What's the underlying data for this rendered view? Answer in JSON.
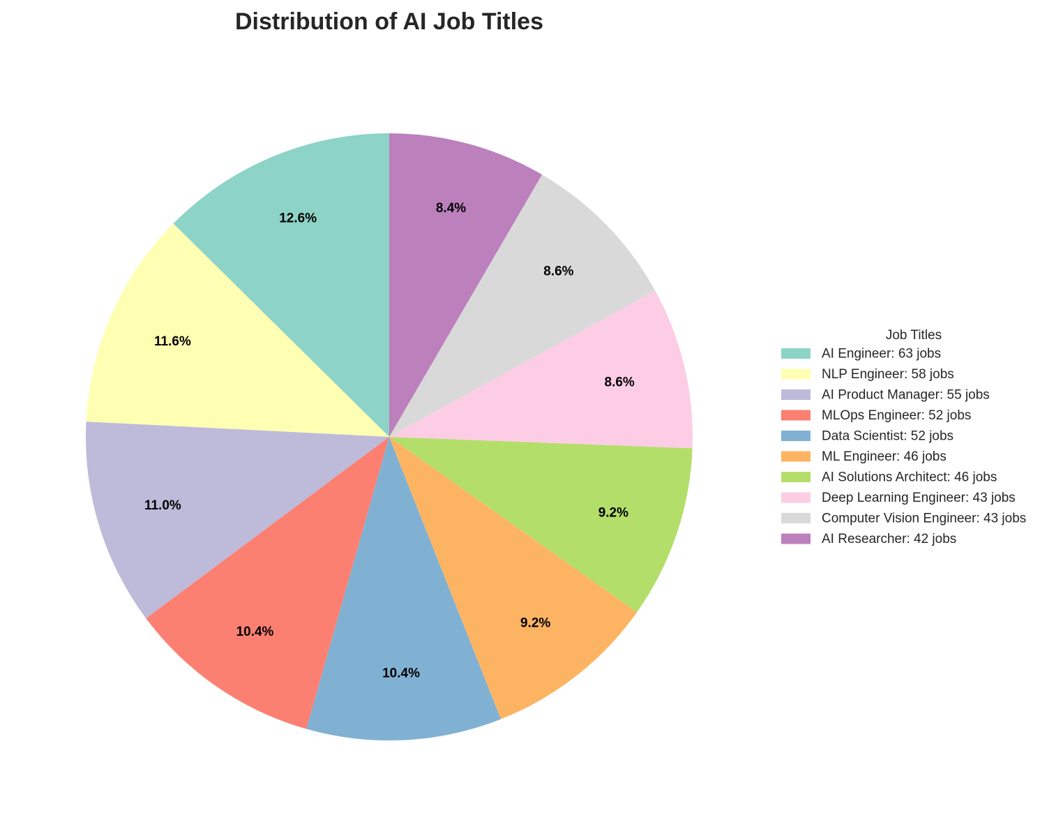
{
  "chart_data": {
    "type": "pie",
    "title": "Distribution of AI Job Titles",
    "legend_title": "Job Titles",
    "legend_position": "right",
    "start_angle_deg": 90,
    "direction": "counterclockwise",
    "slices": [
      {
        "label": "AI Engineer",
        "value": 63,
        "percent": "12.6%",
        "legend": "AI Engineer: 63 jobs",
        "color": "#8dd3c7"
      },
      {
        "label": "NLP Engineer",
        "value": 58,
        "percent": "11.6%",
        "legend": "NLP Engineer: 58 jobs",
        "color": "#ffffb3"
      },
      {
        "label": "AI Product Manager",
        "value": 55,
        "percent": "11.0%",
        "legend": "AI Product Manager: 55 jobs",
        "color": "#bebada"
      },
      {
        "label": "MLOps Engineer",
        "value": 52,
        "percent": "10.4%",
        "legend": "MLOps Engineer: 52 jobs",
        "color": "#fb8072"
      },
      {
        "label": "Data Scientist",
        "value": 52,
        "percent": "10.4%",
        "legend": "Data Scientist: 52 jobs",
        "color": "#80b1d3"
      },
      {
        "label": "ML Engineer",
        "value": 46,
        "percent": "9.2%",
        "legend": "ML Engineer: 46 jobs",
        "color": "#fdb462"
      },
      {
        "label": "AI Solutions Architect",
        "value": 46,
        "percent": "9.2%",
        "legend": "AI Solutions Architect: 46 jobs",
        "color": "#b3de69"
      },
      {
        "label": "Deep Learning Engineer",
        "value": 43,
        "percent": "8.6%",
        "legend": "Deep Learning Engineer: 43 jobs",
        "color": "#fccde5"
      },
      {
        "label": "Computer Vision Engineer",
        "value": 43,
        "percent": "8.6%",
        "legend": "Computer Vision Engineer: 43 jobs",
        "color": "#d9d9d9"
      },
      {
        "label": "AI Researcher",
        "value": 42,
        "percent": "8.4%",
        "legend": "AI Researcher: 42 jobs",
        "color": "#bc80bd"
      }
    ]
  }
}
